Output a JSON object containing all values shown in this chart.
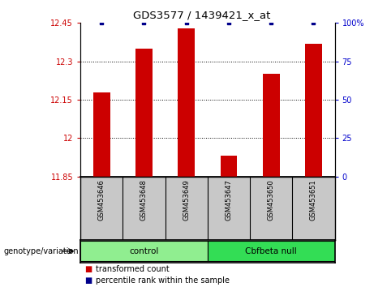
{
  "title": "GDS3577 / 1439421_x_at",
  "samples": [
    "GSM453646",
    "GSM453648",
    "GSM453649",
    "GSM453647",
    "GSM453650",
    "GSM453651"
  ],
  "transformed_counts": [
    12.18,
    12.35,
    12.43,
    11.93,
    12.25,
    12.37
  ],
  "percentile_ranks": [
    100,
    100,
    100,
    100,
    100,
    100
  ],
  "ylim_left": [
    11.85,
    12.45
  ],
  "ylim_right": [
    0,
    100
  ],
  "yticks_left": [
    11.85,
    12.0,
    12.15,
    12.3,
    12.45
  ],
  "yticks_right": [
    0,
    25,
    50,
    75,
    100
  ],
  "ytick_labels_left": [
    "11.85",
    "12",
    "12.15",
    "12.3",
    "12.45"
  ],
  "ytick_labels_right": [
    "0",
    "25",
    "50",
    "75",
    "100%"
  ],
  "hgrid_values": [
    12.0,
    12.15,
    12.3
  ],
  "groups": [
    {
      "label": "control",
      "indices": [
        0,
        1,
        2
      ],
      "color": "#90EE90"
    },
    {
      "label": "Cbfbeta null",
      "indices": [
        3,
        4,
        5
      ],
      "color": "#33DD55"
    }
  ],
  "bar_color": "#CC0000",
  "percentile_color": "#00008B",
  "bar_width": 0.4,
  "label_area_color": "#C8C8C8",
  "genotype_label": "genotype/variation",
  "legend_bar_label": "transformed count",
  "legend_dot_label": "percentile rank within the sample",
  "left_tick_color": "#CC0000",
  "right_tick_color": "#0000CC"
}
